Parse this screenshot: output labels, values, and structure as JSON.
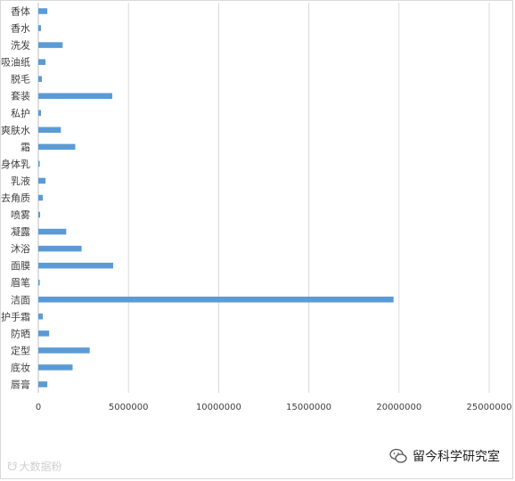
{
  "chart_data": {
    "type": "bar",
    "orientation": "horizontal",
    "title": "",
    "xlabel": "",
    "ylabel": "",
    "xlim": [
      0,
      25000000
    ],
    "ticks": [
      "0",
      "5000000",
      "10000000",
      "15000000",
      "20000000",
      "25000000"
    ],
    "grid": true,
    "bar_color": "#5b9bd5",
    "categories": [
      "香体",
      "香水",
      "洗发",
      "吸油纸",
      "脱毛",
      "套装",
      "私护",
      "爽肤水",
      "霜",
      "身体乳",
      "乳液",
      "去角质",
      "喷雾",
      "凝露",
      "沐浴",
      "面膜",
      "眉笔",
      "洁面",
      "护手霜",
      "防晒",
      "定型",
      "底妆",
      "唇膏"
    ],
    "values": [
      500000,
      150000,
      1350000,
      400000,
      200000,
      4100000,
      150000,
      1250000,
      2050000,
      80000,
      400000,
      250000,
      100000,
      1550000,
      2400000,
      4150000,
      80000,
      19700000,
      250000,
      600000,
      2850000,
      1900000,
      500000
    ]
  },
  "watermarks": {
    "left_text": "大数据粉",
    "right_text": "留今科学研究室"
  }
}
